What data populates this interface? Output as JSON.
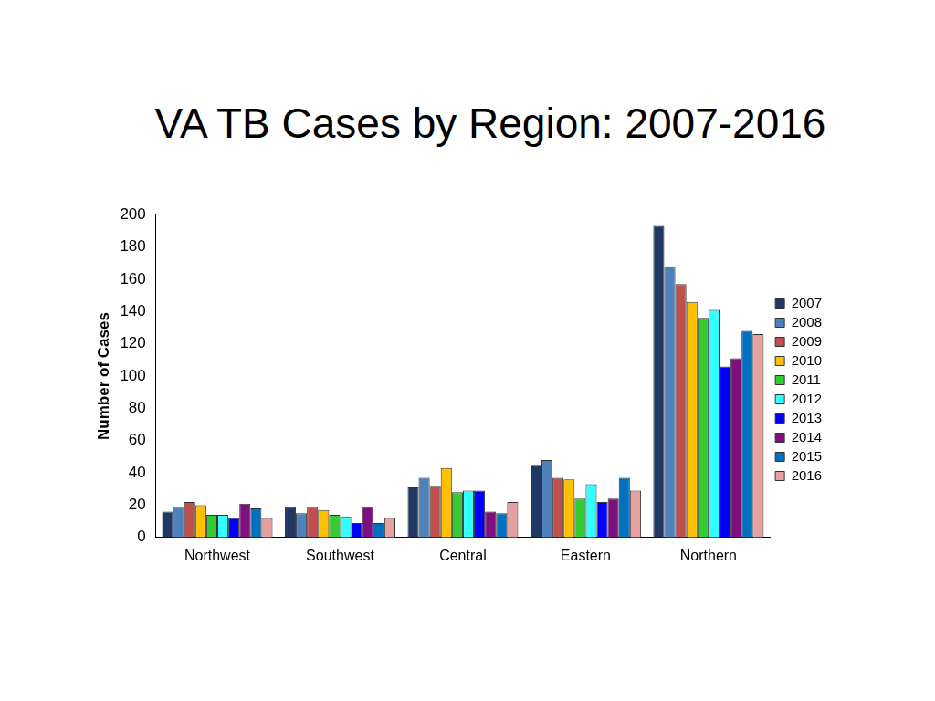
{
  "chart_data": {
    "type": "bar",
    "title": "VA TB Cases by Region: 2007-2016",
    "y_label": "Number of Cases",
    "categories": [
      "Northwest",
      "Southwest",
      "Central",
      "Eastern",
      "Northern"
    ],
    "series": [
      {
        "name": "2007",
        "color": "#1f3864",
        "values": [
          16,
          19,
          31,
          45,
          193
        ]
      },
      {
        "name": "2008",
        "color": "#4f81bd",
        "values": [
          19,
          15,
          37,
          48,
          168
        ]
      },
      {
        "name": "2009",
        "color": "#c0504d",
        "values": [
          22,
          19,
          32,
          37,
          157
        ]
      },
      {
        "name": "2010",
        "color": "#ffc000",
        "values": [
          20,
          17,
          43,
          36,
          146
        ]
      },
      {
        "name": "2011",
        "color": "#33cc33",
        "values": [
          14,
          14,
          28,
          24,
          136
        ]
      },
      {
        "name": "2012",
        "color": "#33ffff",
        "values": [
          14,
          13,
          29,
          33,
          141
        ]
      },
      {
        "name": "2013",
        "color": "#0000ff",
        "values": [
          12,
          9,
          29,
          22,
          106
        ]
      },
      {
        "name": "2014",
        "color": "#7f0f7e",
        "values": [
          21,
          19,
          16,
          24,
          111
        ]
      },
      {
        "name": "2015",
        "color": "#0070c0",
        "values": [
          18,
          9,
          15,
          37,
          128
        ]
      },
      {
        "name": "2016",
        "color": "#e6a0a0",
        "values": [
          12,
          12,
          22,
          29,
          126
        ]
      }
    ],
    "ylim": [
      0,
      200
    ],
    "yticks": [
      0,
      20,
      40,
      60,
      80,
      100,
      120,
      140,
      160,
      180,
      200
    ],
    "grid": false,
    "legend": "right"
  }
}
